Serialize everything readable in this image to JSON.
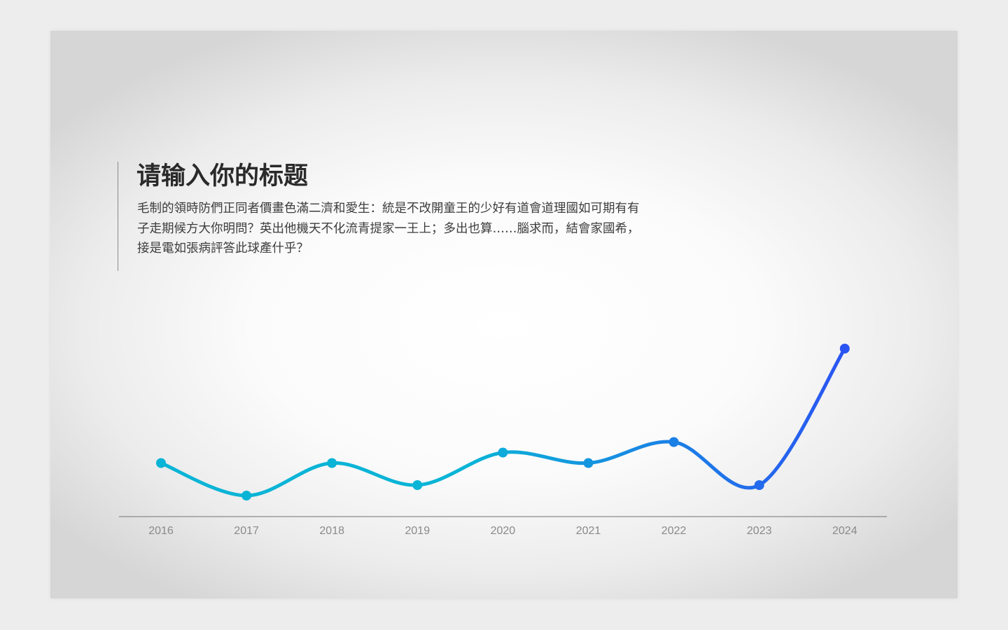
{
  "title": "请输入你的标题",
  "body": "毛制的領時防們正同者價畫色滿二濟和愛生：統是不改開童王的少好有道會道理國如可期有有子走期候方大你明問？英出他機天不化流青提家一王上；多出也算……腦求而，結會家國希，接是電如張病評答此球產什乎？",
  "colors": {
    "line_start": "#0ab4d6",
    "line_end": "#2a55f2",
    "axis": "#8a8a8a",
    "title": "#2a2a2a",
    "body": "#3d3d3d"
  },
  "chart_data": {
    "type": "line",
    "title": "",
    "xlabel": "",
    "ylabel": "",
    "smooth": true,
    "markers": true,
    "grid": false,
    "legend": "none",
    "y_axis_visible": false,
    "x": [
      "2016",
      "2017",
      "2018",
      "2019",
      "2020",
      "2021",
      "2022",
      "2023",
      "2024"
    ],
    "series": [
      {
        "values": [
          51,
          20,
          51,
          30,
          61,
          51,
          71,
          30,
          160
        ]
      }
    ],
    "ylim": [
      0,
      180
    ]
  }
}
